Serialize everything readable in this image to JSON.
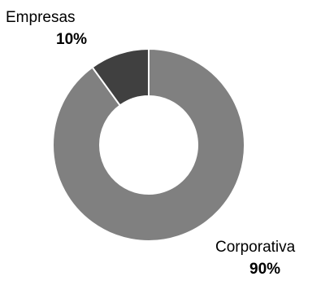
{
  "chart_data": {
    "type": "pie",
    "style": "donut",
    "title": "",
    "slices": [
      {
        "label": "Empresas",
        "value": 10,
        "value_label": "10%",
        "color": "#404040"
      },
      {
        "label": "Corporativa",
        "value": 90,
        "value_label": "90%",
        "color": "#808080"
      }
    ],
    "slice_border_color": "#ffffff",
    "legend": "none",
    "data_labels": "outside"
  }
}
